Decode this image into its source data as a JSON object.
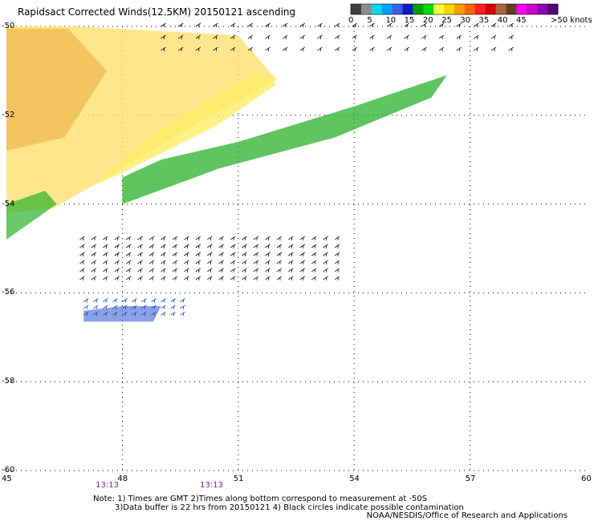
{
  "title": "Rapidsact Corrected Winds(12.5KM) 20150121 ascending",
  "color_scale": {
    "colors": [
      "#404040",
      "#8c8c8c",
      "#00d8f0",
      "#00a0ff",
      "#3a5ee8",
      "#1414c8",
      "#00a000",
      "#00dc00",
      "#ffff3c",
      "#ffd700",
      "#ff9b00",
      "#ff6400",
      "#ff2020",
      "#d80000",
      "#a86440",
      "#6b3a1e",
      "#ff00ff",
      "#c800c8",
      "#8c00b4",
      "#500078"
    ],
    "labels": [
      "0",
      "5",
      "10",
      "15",
      "20",
      "25",
      "30",
      "35",
      "40",
      "45",
      ">50 knots"
    ],
    "label_knots": [
      0,
      5,
      10,
      15,
      20,
      25,
      30,
      35,
      40,
      45,
      50
    ]
  },
  "map": {
    "lon_range": [
      45,
      60
    ],
    "lat_range": [
      -50,
      -60
    ],
    "lat_labels": [
      "-50",
      "-52",
      "-54",
      "-56",
      "-58",
      "-60"
    ],
    "lon_labels": [
      "45",
      "48",
      "51",
      "54",
      "57",
      "60"
    ],
    "grid_lats": [
      -50,
      -52,
      -54,
      -56,
      -58,
      -60
    ],
    "grid_lons": [
      48,
      51,
      54,
      57
    ],
    "time_labels": [
      {
        "text": "13:13",
        "lon": 47.6
      },
      {
        "text": "13:13",
        "lon": 50.3
      }
    ]
  },
  "notes": {
    "line1": "Note: 1) Times are GMT 2)Times along bottom correspond to measurement at -50S",
    "line2": "3)Data buffer is 22 hrs from 20150121 4) Black circles indicate possible contamination"
  },
  "credit": "NOAA/NESDIS/Office of Research and Applications"
}
